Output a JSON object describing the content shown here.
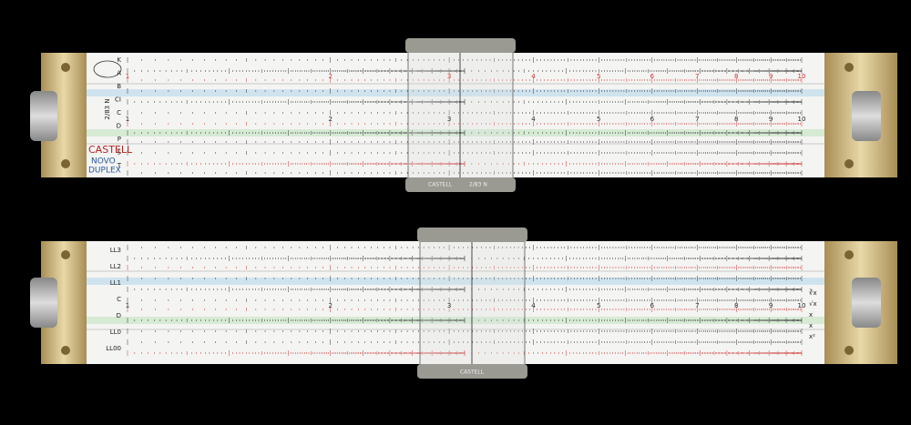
{
  "top_rule": {
    "brand": "CASTELL",
    "model_line1": "NOVO",
    "model_line2": "DUPLEX",
    "model_number": "2/83 N",
    "scale_names": [
      "K",
      "A",
      "B",
      "CI",
      "C",
      "D",
      "P",
      "S",
      "T"
    ],
    "main_scale": [
      "1",
      "2",
      "3",
      "4",
      "5",
      "6",
      "7",
      "8",
      "9",
      "10"
    ],
    "upper_scale": [
      "1",
      "2",
      "3",
      "4",
      "5",
      "6",
      "7",
      "8",
      "9",
      "10"
    ],
    "cursor_brand": "CASTELL",
    "cursor_number": "2/83 N"
  },
  "bottom_rule": {
    "scale_names": [
      "LL3",
      "LL2",
      "LL1",
      "C",
      "D",
      "LL0",
      "LL00"
    ],
    "right_names": [
      "∛x",
      "√x",
      "x",
      "x",
      "x²"
    ],
    "main_scale": [
      "1",
      "2",
      "3",
      "4",
      "5",
      "6",
      "7",
      "8",
      "9",
      "10"
    ],
    "cursor_brand": "CASTELL"
  }
}
